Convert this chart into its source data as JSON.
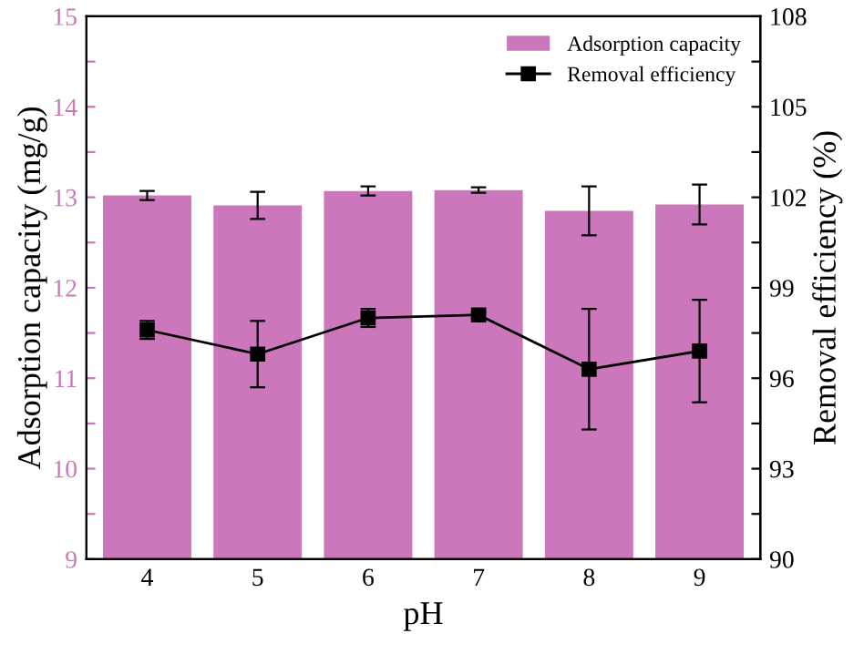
{
  "chart_data": {
    "type": "bar",
    "categories": [
      "4",
      "5",
      "6",
      "7",
      "8",
      "9"
    ],
    "xlabel": "pH",
    "ylabel": "Adsorption capacity (mg/g)",
    "y2label": "Removal efficiency (%)",
    "series": [
      {
        "name": "Adsorption capacity",
        "color": "#cc77bb",
        "values": [
          13.02,
          12.91,
          13.07,
          13.08,
          12.85,
          12.92
        ],
        "errors": [
          0.05,
          0.15,
          0.05,
          0.03,
          0.27,
          0.22
        ]
      },
      {
        "name": "Removal efficiency",
        "type": "line",
        "axis": "y2",
        "color": "#000000",
        "marker": "square",
        "values": [
          97.6,
          96.8,
          98.0,
          98.1,
          96.3,
          96.9
        ],
        "errors": [
          0.3,
          1.1,
          0.3,
          0.1,
          2.0,
          1.7
        ]
      }
    ],
    "ylim": [
      9,
      15
    ],
    "yticks": [
      9,
      {
        "value": 9.5,
        "label": null
      },
      10,
      {
        "value": 10.5,
        "label": null
      },
      11,
      {
        "value": 11.5,
        "label": null
      },
      12,
      {
        "value": 12.5,
        "label": null
      },
      13,
      {
        "value": 13.5,
        "label": null
      },
      14,
      {
        "value": 14.5,
        "label": null
      },
      15
    ],
    "y2lim": [
      90,
      108
    ],
    "y2ticks": [
      90,
      {
        "value": 91.5,
        "label": null
      },
      93,
      {
        "value": 94.5,
        "label": null
      },
      96,
      {
        "value": 97.5,
        "label": null
      },
      99,
      {
        "value": 100.5,
        "label": null
      },
      102,
      {
        "value": 103.5,
        "label": null
      },
      105,
      {
        "value": 106.5,
        "label": null
      },
      108
    ],
    "legend": "top right",
    "grid": false
  }
}
